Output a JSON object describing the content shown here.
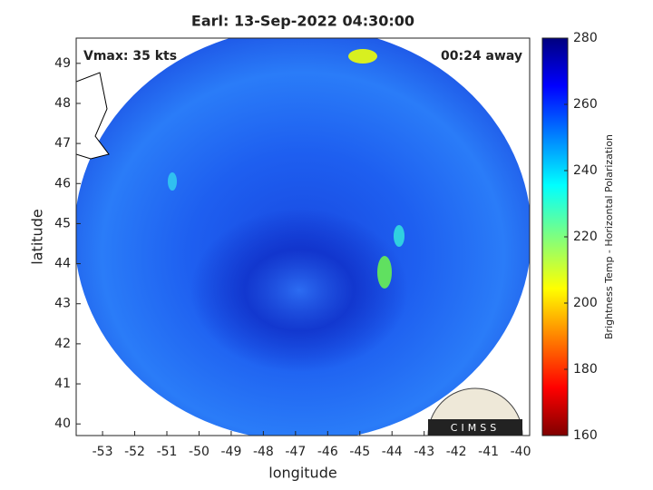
{
  "chart_data": {
    "type": "heatmap",
    "title": "Earl: 13-Sep-2022 04:30:00",
    "xlabel": "longitude",
    "ylabel": "latitude",
    "annotations": [
      "Vmax: 35 kts",
      "00:24 away"
    ],
    "xlim": [
      -53.82,
      -39.72
    ],
    "xticks": [
      -53,
      -52,
      -51,
      -50,
      -49,
      -48,
      -47,
      -46,
      -45,
      -44,
      -43,
      -42,
      -41,
      -40
    ],
    "ylim": [
      39.71,
      49.63
    ],
    "yticks": [
      40,
      41,
      42,
      43,
      44,
      45,
      46,
      47,
      48,
      49
    ],
    "colorbar_label": "Brightness Temp - Horizontal Polarization",
    "clim": [
      160,
      280
    ],
    "cticks": [
      160,
      180,
      200,
      220,
      240,
      260,
      280
    ],
    "colormap": "jet",
    "logo": "CIMSS"
  }
}
